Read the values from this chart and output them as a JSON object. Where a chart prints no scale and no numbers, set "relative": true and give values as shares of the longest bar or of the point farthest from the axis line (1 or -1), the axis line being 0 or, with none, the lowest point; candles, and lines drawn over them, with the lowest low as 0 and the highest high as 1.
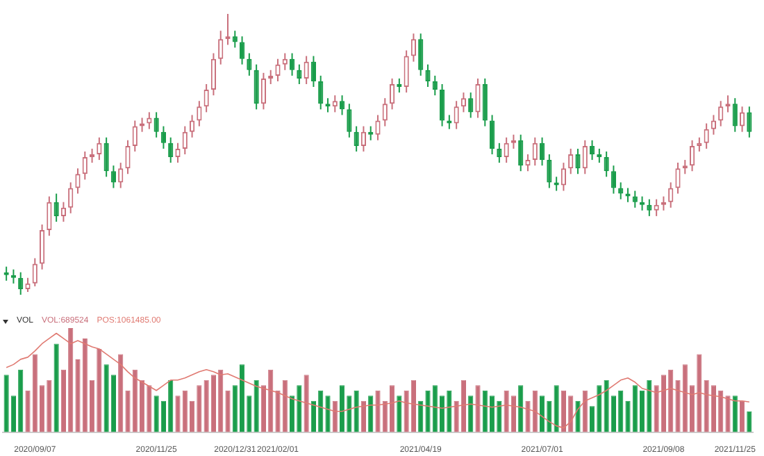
{
  "chart_data": [
    {
      "type": "candlestick",
      "relative": true,
      "tick_labels": false,
      "categories": [
        null,
        null,
        null,
        null,
        null,
        null,
        null,
        null,
        null,
        null,
        null,
        null,
        null,
        null,
        null,
        null,
        null,
        null,
        null,
        null,
        null,
        null,
        null,
        null,
        null,
        null,
        null,
        null,
        null,
        null,
        null,
        null,
        null,
        null,
        null,
        null,
        null,
        null,
        null,
        null,
        null,
        null,
        null,
        null,
        null,
        null,
        null,
        null,
        null,
        null,
        null,
        null,
        null,
        null,
        null,
        null,
        null,
        null,
        null,
        null,
        null,
        null,
        null,
        null,
        null,
        null,
        null,
        null,
        null,
        null,
        null,
        null,
        null,
        null,
        null,
        null,
        null,
        null,
        null,
        null,
        null,
        null,
        null,
        null,
        null,
        null,
        null,
        null,
        null,
        null,
        null,
        null,
        null,
        null,
        null,
        null,
        null,
        null,
        null,
        null,
        null,
        null,
        null,
        null,
        null
      ],
      "ohlc": [
        [
          0.08,
          0.1,
          0.05,
          0.07
        ],
        [
          0.07,
          0.09,
          0.04,
          0.06
        ],
        [
          0.06,
          0.08,
          0,
          0.02
        ],
        [
          0.02,
          0.06,
          0.01,
          0.04
        ],
        [
          0.04,
          0.13,
          0.03,
          0.11
        ],
        [
          0.11,
          0.25,
          0.09,
          0.23
        ],
        [
          0.23,
          0.35,
          0.21,
          0.33
        ],
        [
          0.33,
          0.36,
          0.26,
          0.28
        ],
        [
          0.28,
          0.33,
          0.26,
          0.31
        ],
        [
          0.31,
          0.4,
          0.29,
          0.38
        ],
        [
          0.38,
          0.45,
          0.36,
          0.43
        ],
        [
          0.43,
          0.51,
          0.41,
          0.49
        ],
        [
          0.49,
          0.52,
          0.47,
          0.5
        ],
        [
          0.5,
          0.56,
          0.48,
          0.54
        ],
        [
          0.54,
          0.56,
          0.42,
          0.44
        ],
        [
          0.44,
          0.46,
          0.38,
          0.4
        ],
        [
          0.4,
          0.47,
          0.38,
          0.45
        ],
        [
          0.45,
          0.55,
          0.43,
          0.53
        ],
        [
          0.53,
          0.62,
          0.51,
          0.6
        ],
        [
          0.6,
          0.63,
          0.58,
          0.61
        ],
        [
          0.61,
          0.65,
          0.59,
          0.63
        ],
        [
          0.63,
          0.65,
          0.56,
          0.58
        ],
        [
          0.58,
          0.6,
          0.52,
          0.54
        ],
        [
          0.54,
          0.56,
          0.47,
          0.49
        ],
        [
          0.49,
          0.54,
          0.47,
          0.52
        ],
        [
          0.52,
          0.6,
          0.5,
          0.58
        ],
        [
          0.58,
          0.64,
          0.56,
          0.62
        ],
        [
          0.62,
          0.69,
          0.6,
          0.67
        ],
        [
          0.67,
          0.75,
          0.65,
          0.73
        ],
        [
          0.73,
          0.86,
          0.71,
          0.84
        ],
        [
          0.84,
          0.94,
          0.82,
          0.91
        ],
        [
          0.91,
          1,
          0.89,
          0.92
        ],
        [
          0.92,
          0.94,
          0.88,
          0.9
        ],
        [
          0.9,
          0.92,
          0.82,
          0.84
        ],
        [
          0.84,
          0.86,
          0.78,
          0.8
        ],
        [
          0.8,
          0.82,
          0.66,
          0.68
        ],
        [
          0.68,
          0.79,
          0.66,
          0.77
        ],
        [
          0.77,
          0.8,
          0.75,
          0.78
        ],
        [
          0.78,
          0.84,
          0.76,
          0.82
        ],
        [
          0.82,
          0.86,
          0.8,
          0.84
        ],
        [
          0.84,
          0.86,
          0.78,
          0.8
        ],
        [
          0.8,
          0.82,
          0.75,
          0.77
        ],
        [
          0.77,
          0.85,
          0.75,
          0.83
        ],
        [
          0.83,
          0.85,
          0.74,
          0.76
        ],
        [
          0.76,
          0.78,
          0.66,
          0.68
        ],
        [
          0.68,
          0.7,
          0.65,
          0.67
        ],
        [
          0.67,
          0.71,
          0.65,
          0.69
        ],
        [
          0.69,
          0.71,
          0.64,
          0.66
        ],
        [
          0.66,
          0.68,
          0.56,
          0.58
        ],
        [
          0.58,
          0.6,
          0.51,
          0.53
        ],
        [
          0.53,
          0.6,
          0.51,
          0.58
        ],
        [
          0.58,
          0.6,
          0.55,
          0.57
        ],
        [
          0.57,
          0.64,
          0.55,
          0.62
        ],
        [
          0.62,
          0.7,
          0.6,
          0.68
        ],
        [
          0.68,
          0.77,
          0.66,
          0.75
        ],
        [
          0.75,
          0.77,
          0.72,
          0.74
        ],
        [
          0.74,
          0.87,
          0.72,
          0.85
        ],
        [
          0.85,
          0.93,
          0.83,
          0.91
        ],
        [
          0.91,
          0.93,
          0.78,
          0.8
        ],
        [
          0.8,
          0.82,
          0.74,
          0.76
        ],
        [
          0.76,
          0.78,
          0.71,
          0.73
        ],
        [
          0.73,
          0.75,
          0.6,
          0.62
        ],
        [
          0.62,
          0.64,
          0.59,
          0.61
        ],
        [
          0.61,
          0.69,
          0.59,
          0.67
        ],
        [
          0.67,
          0.72,
          0.65,
          0.7
        ],
        [
          0.7,
          0.72,
          0.63,
          0.65
        ],
        [
          0.65,
          0.77,
          0.63,
          0.75
        ],
        [
          0.75,
          0.77,
          0.6,
          0.62
        ],
        [
          0.62,
          0.64,
          0.5,
          0.52
        ],
        [
          0.52,
          0.54,
          0.47,
          0.49
        ],
        [
          0.49,
          0.56,
          0.47,
          0.54
        ],
        [
          0.54,
          0.57,
          0.52,
          0.55
        ],
        [
          0.55,
          0.57,
          0.44,
          0.46
        ],
        [
          0.46,
          0.5,
          0.44,
          0.48
        ],
        [
          0.48,
          0.56,
          0.46,
          0.54
        ],
        [
          0.54,
          0.56,
          0.46,
          0.48
        ],
        [
          0.48,
          0.5,
          0.38,
          0.4
        ],
        [
          0.4,
          0.42,
          0.37,
          0.39
        ],
        [
          0.39,
          0.47,
          0.37,
          0.45
        ],
        [
          0.45,
          0.52,
          0.43,
          0.5
        ],
        [
          0.5,
          0.52,
          0.43,
          0.45
        ],
        [
          0.45,
          0.55,
          0.43,
          0.53
        ],
        [
          0.53,
          0.55,
          0.48,
          0.5
        ],
        [
          0.5,
          0.52,
          0.47,
          0.49
        ],
        [
          0.49,
          0.51,
          0.42,
          0.44
        ],
        [
          0.44,
          0.46,
          0.36,
          0.38
        ],
        [
          0.38,
          0.4,
          0.34,
          0.36
        ],
        [
          0.36,
          0.38,
          0.33,
          0.35
        ],
        [
          0.35,
          0.37,
          0.31,
          0.33
        ],
        [
          0.33,
          0.35,
          0.3,
          0.32
        ],
        [
          0.32,
          0.34,
          0.28,
          0.3
        ],
        [
          0.3,
          0.34,
          0.28,
          0.32
        ],
        [
          0.32,
          0.35,
          0.3,
          0.33
        ],
        [
          0.33,
          0.4,
          0.31,
          0.38
        ],
        [
          0.38,
          0.47,
          0.36,
          0.45
        ],
        [
          0.45,
          0.48,
          0.43,
          0.46
        ],
        [
          0.46,
          0.55,
          0.44,
          0.53
        ],
        [
          0.53,
          0.56,
          0.51,
          0.54
        ],
        [
          0.54,
          0.61,
          0.52,
          0.59
        ],
        [
          0.59,
          0.64,
          0.57,
          0.62
        ],
        [
          0.62,
          0.69,
          0.6,
          0.67
        ],
        [
          0.67,
          0.71,
          0.65,
          0.68
        ],
        [
          0.68,
          0.7,
          0.58,
          0.6
        ],
        [
          0.6,
          0.67,
          0.58,
          0.65
        ],
        [
          0.65,
          0.67,
          0.56,
          0.58
        ]
      ],
      "colors": [
        "#1a9d4b",
        "#1a9d4b",
        "#1a9d4b",
        "#c9707c",
        "#c9707c",
        "#c9707c",
        "#c9707c",
        "#1a9d4b",
        "#c9707c",
        "#c9707c",
        "#c9707c",
        "#c9707c",
        "#c9707c",
        "#c9707c",
        "#1a9d4b",
        "#1a9d4b",
        "#c9707c",
        "#c9707c",
        "#c9707c",
        "#c9707c",
        "#c9707c",
        "#1a9d4b",
        "#1a9d4b",
        "#1a9d4b",
        "#c9707c",
        "#c9707c",
        "#c9707c",
        "#c9707c",
        "#c9707c",
        "#c9707c",
        "#c9707c",
        "#c9707c",
        "#1a9d4b",
        "#1a9d4b",
        "#1a9d4b",
        "#1a9d4b",
        "#c9707c",
        "#c9707c",
        "#c9707c",
        "#c9707c",
        "#1a9d4b",
        "#1a9d4b",
        "#c9707c",
        "#1a9d4b",
        "#1a9d4b",
        "#1a9d4b",
        "#c9707c",
        "#1a9d4b",
        "#1a9d4b",
        "#1a9d4b",
        "#c9707c",
        "#1a9d4b",
        "#c9707c",
        "#c9707c",
        "#c9707c",
        "#1a9d4b",
        "#c9707c",
        "#c9707c",
        "#1a9d4b",
        "#1a9d4b",
        "#1a9d4b",
        "#1a9d4b",
        "#1a9d4b",
        "#c9707c",
        "#c9707c",
        "#1a9d4b",
        "#c9707c",
        "#1a9d4b",
        "#1a9d4b",
        "#1a9d4b",
        "#c9707c",
        "#c9707c",
        "#1a9d4b",
        "#c9707c",
        "#c9707c",
        "#1a9d4b",
        "#1a9d4b",
        "#1a9d4b",
        "#c9707c",
        "#c9707c",
        "#1a9d4b",
        "#c9707c",
        "#1a9d4b",
        "#1a9d4b",
        "#1a9d4b",
        "#1a9d4b",
        "#1a9d4b",
        "#1a9d4b",
        "#1a9d4b",
        "#1a9d4b",
        "#1a9d4b",
        "#c9707c",
        "#c9707c",
        "#c9707c",
        "#c9707c",
        "#c9707c",
        "#c9707c",
        "#c9707c",
        "#c9707c",
        "#c9707c",
        "#c9707c",
        "#c9707c",
        "#1a9d4b",
        "#c9707c",
        "#1a9d4b"
      ]
    },
    {
      "type": "bar",
      "relative": true,
      "title": "VOL",
      "legend": "top left",
      "categories": [
        null,
        null,
        null,
        null,
        "2020/09/07",
        null,
        null,
        null,
        null,
        null,
        null,
        null,
        null,
        null,
        null,
        null,
        null,
        null,
        null,
        null,
        null,
        "2020/11/25",
        null,
        null,
        null,
        null,
        null,
        null,
        null,
        null,
        null,
        null,
        "2020/12/31",
        null,
        null,
        null,
        null,
        null,
        "2021/02/01",
        null,
        null,
        null,
        null,
        null,
        null,
        null,
        null,
        null,
        null,
        null,
        null,
        null,
        null,
        null,
        null,
        null,
        null,
        null,
        "2021/04/19",
        null,
        null,
        null,
        null,
        null,
        null,
        null,
        null,
        null,
        null,
        null,
        null,
        null,
        null,
        null,
        null,
        "2021/07/01",
        null,
        null,
        null,
        null,
        null,
        null,
        null,
        null,
        null,
        null,
        null,
        null,
        null,
        null,
        null,
        null,
        "2021/09/08",
        null,
        null,
        null,
        null,
        null,
        null,
        null,
        null,
        null,
        "2021/11/25",
        null,
        null
      ],
      "series": [
        {
          "name": "VOL:689524",
          "color": "#c9707c",
          "values": [
            0.55,
            0.35,
            0.6,
            0.4,
            0.75,
            0.45,
            0.5,
            0.85,
            0.6,
            1.0,
            0.7,
            0.9,
            0.5,
            0.8,
            0.65,
            0.55,
            0.75,
            0.4,
            0.6,
            0.5,
            0.45,
            0.35,
            0.3,
            0.5,
            0.35,
            0.4,
            0.3,
            0.45,
            0.5,
            0.55,
            0.6,
            0.4,
            0.45,
            0.65,
            0.35,
            0.5,
            0.45,
            0.6,
            0.4,
            0.5,
            0.35,
            0.45,
            0.55,
            0.3,
            0.4,
            0.35,
            0.3,
            0.45,
            0.35,
            0.4,
            0.3,
            0.35,
            0.4,
            0.3,
            0.45,
            0.35,
            0.4,
            0.5,
            0.3,
            0.4,
            0.45,
            0.35,
            0.4,
            0.3,
            0.5,
            0.35,
            0.45,
            0.4,
            0.35,
            0.3,
            0.4,
            0.35,
            0.45,
            0.3,
            0.4,
            0.35,
            0.3,
            0.45,
            0.4,
            0.35,
            0.3,
            0.4,
            0.25,
            0.45,
            0.5,
            0.35,
            0.4,
            0.3,
            0.45,
            0.4,
            0.5,
            0.45,
            0.55,
            0.6,
            0.5,
            0.65,
            0.45,
            0.75,
            0.5,
            0.45,
            0.4,
            0.35,
            0.35,
            0.3,
            0.2
          ],
          "colors": [
            "#1a9d4b",
            "#1a9d4b",
            "#1a9d4b",
            "#c9707c",
            "#c9707c",
            "#c9707c",
            "#c9707c",
            "#1a9d4b",
            "#c9707c",
            "#c9707c",
            "#c9707c",
            "#c9707c",
            "#c9707c",
            "#c9707c",
            "#1a9d4b",
            "#1a9d4b",
            "#c9707c",
            "#c9707c",
            "#c9707c",
            "#c9707c",
            "#c9707c",
            "#1a9d4b",
            "#1a9d4b",
            "#1a9d4b",
            "#c9707c",
            "#c9707c",
            "#c9707c",
            "#c9707c",
            "#c9707c",
            "#c9707c",
            "#c9707c",
            "#c9707c",
            "#1a9d4b",
            "#1a9d4b",
            "#1a9d4b",
            "#1a9d4b",
            "#c9707c",
            "#c9707c",
            "#c9707c",
            "#c9707c",
            "#1a9d4b",
            "#1a9d4b",
            "#c9707c",
            "#1a9d4b",
            "#1a9d4b",
            "#1a9d4b",
            "#c9707c",
            "#1a9d4b",
            "#1a9d4b",
            "#1a9d4b",
            "#c9707c",
            "#1a9d4b",
            "#c9707c",
            "#c9707c",
            "#c9707c",
            "#1a9d4b",
            "#c9707c",
            "#c9707c",
            "#1a9d4b",
            "#1a9d4b",
            "#1a9d4b",
            "#1a9d4b",
            "#1a9d4b",
            "#c9707c",
            "#c9707c",
            "#1a9d4b",
            "#c9707c",
            "#1a9d4b",
            "#1a9d4b",
            "#1a9d4b",
            "#c9707c",
            "#c9707c",
            "#1a9d4b",
            "#c9707c",
            "#c9707c",
            "#1a9d4b",
            "#1a9d4b",
            "#1a9d4b",
            "#c9707c",
            "#c9707c",
            "#1a9d4b",
            "#c9707c",
            "#1a9d4b",
            "#1a9d4b",
            "#1a9d4b",
            "#1a9d4b",
            "#1a9d4b",
            "#1a9d4b",
            "#1a9d4b",
            "#1a9d4b",
            "#1a9d4b",
            "#c9707c",
            "#c9707c",
            "#c9707c",
            "#c9707c",
            "#c9707c",
            "#c9707c",
            "#c9707c",
            "#c9707c",
            "#c9707c",
            "#c9707c",
            "#c9707c",
            "#1a9d4b",
            "#c9707c",
            "#1a9d4b"
          ]
        },
        {
          "name": "POS:1061485.00",
          "type": "line",
          "color": "#e07a72",
          "values": [
            0.62,
            0.65,
            0.7,
            0.72,
            0.78,
            0.85,
            0.9,
            0.95,
            0.9,
            0.85,
            0.88,
            0.85,
            0.82,
            0.8,
            0.75,
            0.7,
            0.65,
            0.58,
            0.52,
            0.48,
            0.44,
            0.4,
            0.45,
            0.5,
            0.5,
            0.52,
            0.55,
            0.58,
            0.6,
            0.58,
            0.55,
            0.56,
            0.53,
            0.5,
            0.47,
            0.44,
            0.42,
            0.4,
            0.38,
            0.35,
            0.32,
            0.3,
            0.28,
            0.26,
            0.24,
            0.22,
            0.2,
            0.2,
            0.22,
            0.24,
            0.25,
            0.26,
            0.26,
            0.27,
            0.28,
            0.3,
            0.28,
            0.27,
            0.26,
            0.25,
            0.24,
            0.23,
            0.24,
            0.25,
            0.26,
            0.27,
            0.26,
            0.25,
            0.24,
            0.25,
            0.26,
            0.25,
            0.24,
            0.22,
            0.2,
            0.15,
            0.1,
            0.06,
            0.04,
            0.1,
            0.22,
            0.3,
            0.33,
            0.36,
            0.4,
            0.45,
            0.5,
            0.52,
            0.48,
            0.42,
            0.4,
            0.38,
            0.4,
            0.42,
            0.4,
            0.38,
            0.36,
            0.38,
            0.36,
            0.35,
            0.34,
            0.32,
            0.3,
            0.3,
            0.29
          ]
        }
      ]
    }
  ]
}
